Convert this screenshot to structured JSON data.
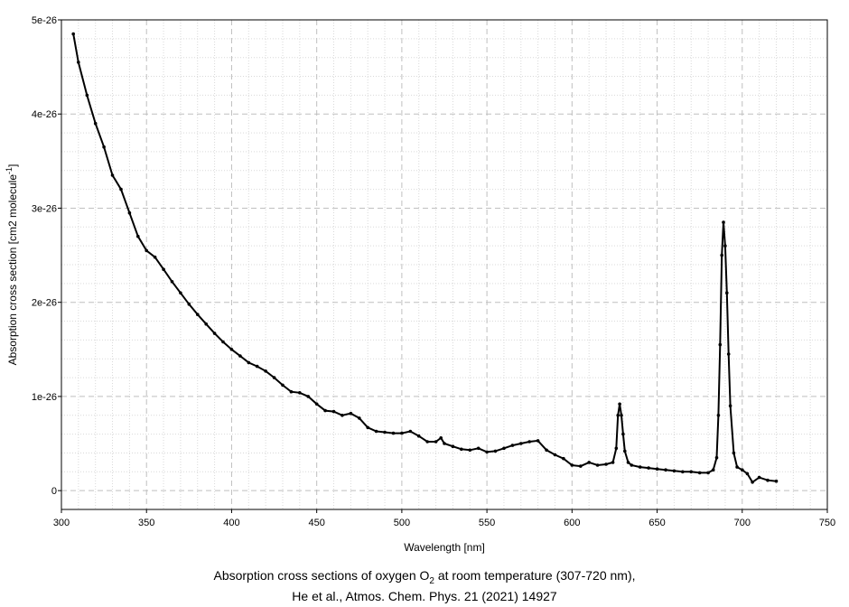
{
  "chart_data": {
    "type": "line",
    "xlabel": "Wavelength [nm]",
    "ylabel": {
      "main": "Absorption cross section [cm2 ",
      "unit": "molecule",
      "exp": "-1",
      "close": "]"
    },
    "xlim": [
      300,
      750
    ],
    "ylim": [
      -2e-27,
      5e-26
    ],
    "x_ticks": [
      "300",
      "350",
      "400",
      "450",
      "500",
      "550",
      "600",
      "650",
      "700",
      "750"
    ],
    "y_ticks": [
      {
        "value": 0,
        "label": "0"
      },
      {
        "value": 1e-26,
        "label": "1e-26"
      },
      {
        "value": 2e-26,
        "label": "2e-26"
      },
      {
        "value": 3e-26,
        "label": "3e-26"
      },
      {
        "value": 4e-26,
        "label": "4e-26"
      },
      {
        "value": 5e-26,
        "label": "5e-26"
      }
    ],
    "grid": true,
    "legend": "none",
    "series": [
      {
        "color": "#000000",
        "x": [
          307,
          310,
          315,
          320,
          325,
          330,
          335,
          340,
          345,
          350,
          355,
          360,
          365,
          370,
          375,
          380,
          385,
          390,
          395,
          400,
          405,
          410,
          415,
          420,
          425,
          430,
          435,
          440,
          445,
          450,
          455,
          460,
          465,
          470,
          475,
          480,
          485,
          490,
          495,
          500,
          505,
          510,
          515,
          520,
          523,
          525,
          530,
          535,
          540,
          545,
          550,
          555,
          560,
          565,
          570,
          575,
          580,
          585,
          590,
          595,
          600,
          605,
          610,
          615,
          620,
          624,
          626,
          627,
          628,
          629,
          630,
          631,
          633,
          635,
          640,
          645,
          650,
          655,
          660,
          665,
          670,
          675,
          680,
          683,
          685,
          686,
          687,
          688,
          689,
          690,
          691,
          692,
          693,
          695,
          697,
          700,
          703,
          706,
          710,
          715,
          720
        ],
        "y": [
          4.85e-26,
          4.55e-26,
          4.2e-26,
          3.9e-26,
          3.65e-26,
          3.35e-26,
          3.2e-26,
          2.95e-26,
          2.7e-26,
          2.55e-26,
          2.48e-26,
          2.35e-26,
          2.22e-26,
          2.1e-26,
          1.98e-26,
          1.87e-26,
          1.77e-26,
          1.67e-26,
          1.58e-26,
          1.5e-26,
          1.43e-26,
          1.36e-26,
          1.32e-26,
          1.27e-26,
          1.2e-26,
          1.12e-26,
          1.05e-26,
          1.04e-26,
          1e-26,
          9.2e-27,
          8.5e-27,
          8.4e-27,
          8e-27,
          8.2e-27,
          7.7e-27,
          6.7e-27,
          6.3e-27,
          6.2e-27,
          6.1e-27,
          6.1e-27,
          6.3e-27,
          5.8e-27,
          5.2e-27,
          5.2e-27,
          5.6e-27,
          5e-27,
          4.7e-27,
          4.4e-27,
          4.3e-27,
          4.5e-27,
          4.1e-27,
          4.2e-27,
          4.5e-27,
          4.8e-27,
          5e-27,
          5.2e-27,
          5.3e-27,
          4.3e-27,
          3.8e-27,
          3.4e-27,
          2.7e-27,
          2.6e-27,
          3e-27,
          2.7e-27,
          2.8e-27,
          3e-27,
          4.5e-27,
          8e-27,
          9.2e-27,
          8e-27,
          6e-27,
          4.2e-27,
          3e-27,
          2.7e-27,
          2.5e-27,
          2.4e-27,
          2.3e-27,
          2.2e-27,
          2.1e-27,
          2e-27,
          2e-27,
          1.9e-27,
          1.9e-27,
          2.2e-27,
          3.5e-27,
          8e-27,
          1.55e-26,
          2.5e-26,
          2.85e-26,
          2.6e-26,
          2.1e-26,
          1.45e-26,
          9e-27,
          4e-27,
          2.5e-27,
          2.2e-27,
          1.8e-27,
          9e-28,
          1.4e-27,
          1.1e-27,
          1e-27
        ]
      }
    ]
  },
  "caption": {
    "line1_a": "Absorption cross sections of oxygen O",
    "line1_sub": "2",
    "line1_b": " at room temperature (307-720 nm),",
    "line2": "He et al., Atmos. Chem. Phys. 21 (2021) 14927"
  }
}
